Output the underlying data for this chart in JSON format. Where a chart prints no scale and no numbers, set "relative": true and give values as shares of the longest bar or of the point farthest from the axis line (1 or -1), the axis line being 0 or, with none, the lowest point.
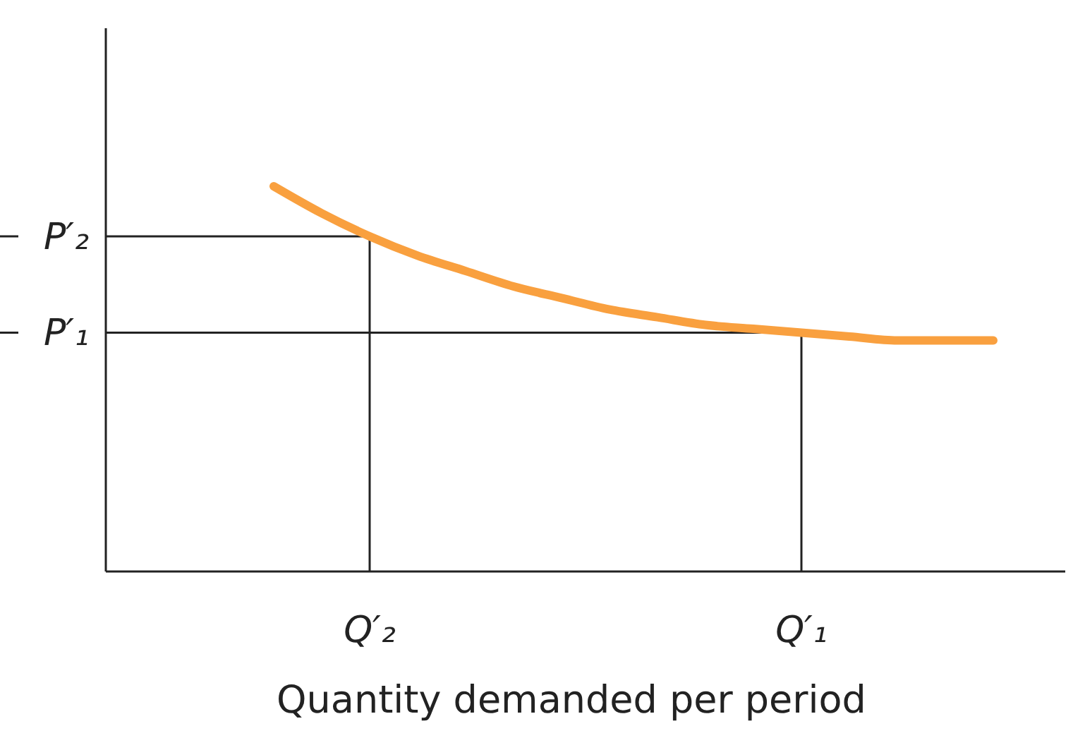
{
  "chart_data": {
    "type": "line",
    "relative": true,
    "xlabel": "Quantity demanded per period",
    "categories": [
      null,
      null,
      null,
      null,
      null,
      "Q′₂",
      null,
      null,
      null,
      null,
      null,
      null,
      null,
      null,
      "Q′₁",
      null,
      null,
      null,
      null,
      null
    ],
    "series": [
      {
        "color": "#f9a03f",
        "values": [
          null,
          null,
          null,
          1.0,
          0.93,
          0.87,
          0.82,
          0.78,
          0.74,
          0.71,
          0.68,
          0.66,
          0.64,
          0.63,
          0.62,
          0.61,
          0.6,
          0.6,
          0.6,
          null
        ]
      }
    ],
    "ref_lines": [
      {
        "axis": "y",
        "value": 0.87,
        "label": "P′₂"
      },
      {
        "axis": "y",
        "value": 0.62,
        "label": "P′₁"
      },
      {
        "axis": "x",
        "value": "Q′₂"
      },
      {
        "axis": "x",
        "value": "Q′₁"
      }
    ],
    "line_style": "solid"
  }
}
